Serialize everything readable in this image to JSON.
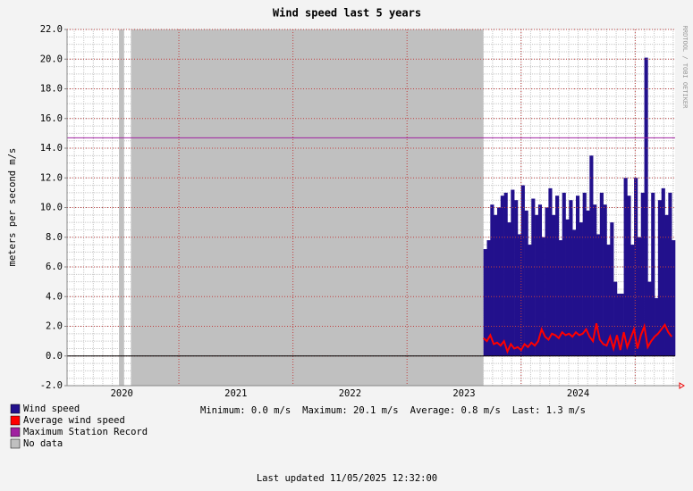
{
  "chart_data": {
    "type": "area",
    "title": "Wind speed last 5 years",
    "y_label": "meters per second    m/s",
    "watermark": "RRDTOOL / TOBI OETIKER",
    "xlim": [
      2020.02,
      2025.35
    ],
    "ylim": [
      -2,
      22
    ],
    "xticks": [
      {
        "value": 2020.5,
        "label": "2020"
      },
      {
        "value": 2021.5,
        "label": "2021"
      },
      {
        "value": 2022.5,
        "label": "2022"
      },
      {
        "value": 2023.5,
        "label": "2023"
      },
      {
        "value": 2024.5,
        "label": "2024"
      }
    ],
    "x_grid": [
      2021,
      2022,
      2023,
      2024,
      2025
    ],
    "yticks": [
      {
        "value": -2,
        "label": "-2.0"
      },
      {
        "value": 0,
        "label": "0.0"
      },
      {
        "value": 2,
        "label": "2.0"
      },
      {
        "value": 4,
        "label": "4.0"
      },
      {
        "value": 6,
        "label": "6.0"
      },
      {
        "value": 8,
        "label": "8.0"
      },
      {
        "value": 10,
        "label": "10.0"
      },
      {
        "value": 12,
        "label": "12.0"
      },
      {
        "value": 14,
        "label": "14.0"
      },
      {
        "value": 16,
        "label": "16.0"
      },
      {
        "value": 18,
        "label": "18.0"
      },
      {
        "value": 20,
        "label": "20.0"
      },
      {
        "value": 22,
        "label": "22.0"
      }
    ],
    "grid": true,
    "x": [
      2023.67,
      2023.7,
      2023.73,
      2023.76,
      2023.79,
      2023.82,
      2023.85,
      2023.88,
      2023.91,
      2023.94,
      2023.97,
      2024.0,
      2024.03,
      2024.06,
      2024.09,
      2024.12,
      2024.15,
      2024.18,
      2024.21,
      2024.24,
      2024.27,
      2024.3,
      2024.33,
      2024.36,
      2024.39,
      2024.42,
      2024.45,
      2024.48,
      2024.51,
      2024.54,
      2024.57,
      2024.6,
      2024.63,
      2024.66,
      2024.69,
      2024.72,
      2024.75,
      2024.78,
      2024.81,
      2024.84,
      2024.87,
      2024.9,
      2024.93,
      2024.96,
      2024.99,
      2025.02,
      2025.05,
      2025.08,
      2025.11,
      2025.14,
      2025.17,
      2025.2,
      2025.23,
      2025.26,
      2025.29,
      2025.32
    ],
    "series": [
      {
        "name": "Wind speed",
        "color": "#22108c",
        "values": [
          7.2,
          7.8,
          10.2,
          9.5,
          10.0,
          10.8,
          11.0,
          9.0,
          11.2,
          10.5,
          8.2,
          11.5,
          9.8,
          7.5,
          10.6,
          9.5,
          10.2,
          8.0,
          10.0,
          11.3,
          9.5,
          10.8,
          7.8,
          11.0,
          9.2,
          10.5,
          8.5,
          10.8,
          9.0,
          11.0,
          9.8,
          13.5,
          10.2,
          8.2,
          11.0,
          10.2,
          7.5,
          9.0,
          5.0,
          4.2,
          4.2,
          12.0,
          10.8,
          7.5,
          12.0,
          8.0,
          11.0,
          20.1,
          5.0,
          11.0,
          3.9,
          10.5,
          11.3,
          9.5,
          11.0,
          7.8
        ]
      },
      {
        "name": "Average wind speed",
        "color": "#ff0000",
        "values": [
          1.2,
          1.0,
          1.4,
          0.8,
          0.9,
          0.7,
          1.0,
          0.3,
          0.8,
          0.5,
          0.6,
          0.4,
          0.8,
          0.6,
          0.9,
          0.7,
          1.0,
          1.8,
          1.3,
          1.1,
          1.5,
          1.4,
          1.2,
          1.6,
          1.4,
          1.5,
          1.3,
          1.6,
          1.4,
          1.5,
          1.8,
          1.3,
          1.0,
          2.2,
          1.1,
          0.8,
          0.7,
          1.3,
          0.5,
          1.4,
          0.4,
          1.6,
          0.6,
          1.2,
          1.8,
          0.5,
          1.4,
          2.0,
          0.6,
          1.0,
          1.3,
          1.5,
          1.8,
          2.1,
          1.6,
          1.3
        ]
      }
    ],
    "reference_line": {
      "name": "Maximum Station Record",
      "color": "#a020a0",
      "value": 14.7
    },
    "no_data": {
      "name": "No data",
      "color": "#c0c0c0",
      "ranges": [
        [
          2020.475,
          2020.52
        ],
        [
          2020.58,
          2023.67
        ]
      ]
    },
    "stats": [
      "Minimum: 0.0 m/s",
      "Maximum: 20.1 m/s",
      "Average: 0.8 m/s",
      "Last: 1.3 m/s"
    ],
    "footer": "Last updated 11/05/2025 12:32:00"
  }
}
